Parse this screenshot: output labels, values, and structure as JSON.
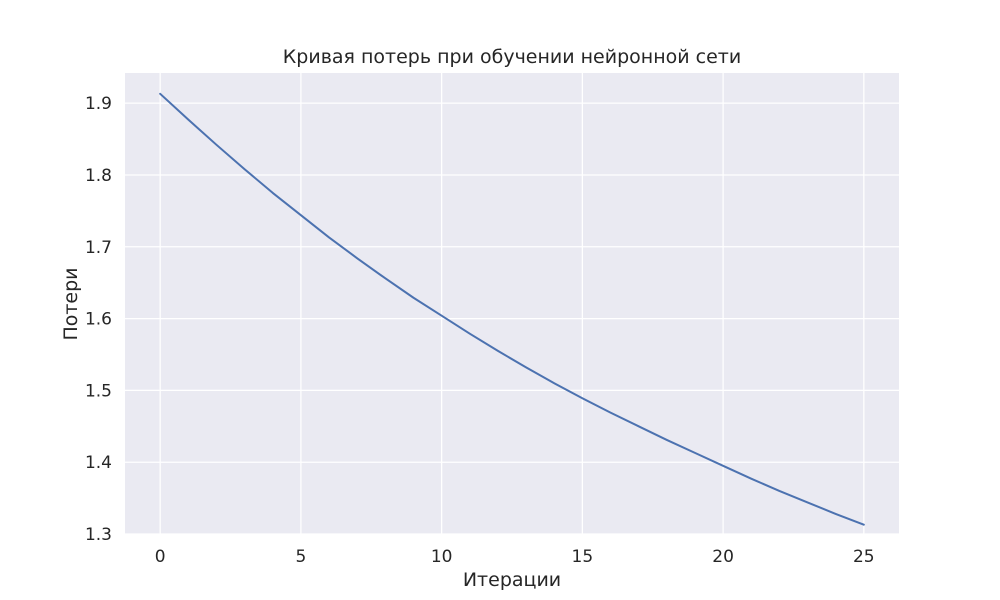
{
  "chart_data": {
    "type": "line",
    "title": "Кривая потерь при обучении нейронной сети",
    "xlabel": "Итерации",
    "ylabel": "Потери",
    "xlim": [
      -1.25,
      26.25
    ],
    "ylim": [
      1.3,
      1.942
    ],
    "xticks": [
      0,
      5,
      10,
      15,
      20,
      25
    ],
    "yticks": [
      1.3,
      1.4,
      1.5,
      1.6,
      1.7,
      1.8,
      1.9
    ],
    "grid": true,
    "series": [
      {
        "color": "#4c72b0",
        "x": [
          0,
          1,
          2,
          3,
          4,
          5,
          6,
          7,
          8,
          9,
          10,
          11,
          12,
          13,
          14,
          15,
          16,
          17,
          18,
          19,
          20,
          21,
          22,
          23,
          24,
          25
        ],
        "y": [
          1.913,
          1.877,
          1.842,
          1.808,
          1.775,
          1.744,
          1.713,
          1.684,
          1.656,
          1.629,
          1.604,
          1.579,
          1.555,
          1.532,
          1.51,
          1.489,
          1.469,
          1.45,
          1.431,
          1.413,
          1.395,
          1.377,
          1.36,
          1.344,
          1.328,
          1.313
        ]
      }
    ]
  }
}
